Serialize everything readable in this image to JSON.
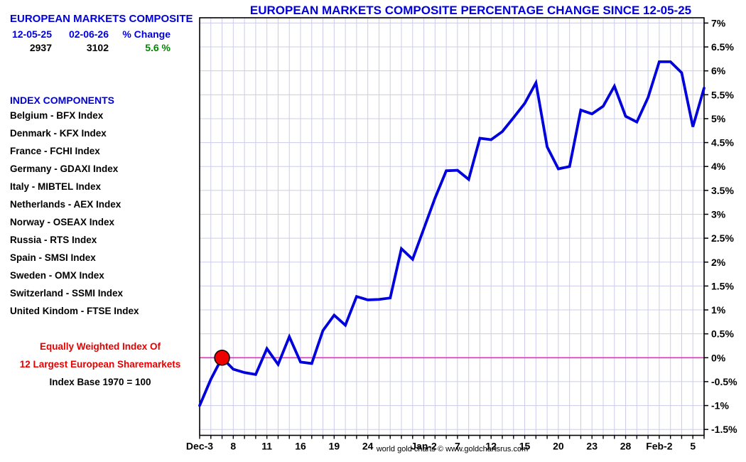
{
  "panel": {
    "title": "EUROPEAN MARKETS COMPOSITE",
    "col_start_date": "12-05-25",
    "col_end_date": "02-06-26",
    "col_change": "% Change",
    "start_value": "2937",
    "end_value": "3102",
    "change_value": "5.6 %",
    "change_color": "#008800"
  },
  "components": {
    "heading": "INDEX COMPONENTS",
    "items": [
      "Belgium - BFX Index",
      "Denmark - KFX Index",
      "France - FCHI Index",
      "Germany - GDAXI Index",
      "Italy - MIBTEL Index",
      "Netherlands - AEX Index",
      "Norway - OSEAX Index",
      "Russia - RTS Index",
      "Spain - SMSI Index",
      "Sweden - OMX Index",
      "Switzerland - SSMI Index",
      "United Kindom - FTSE Index"
    ]
  },
  "notes": [
    "Equally Weighted Index Of",
    "12 Largest European Sharemarkets",
    "Index Base 1970 = 100"
  ],
  "footer": "world gold charts © www.goldchartsrus.com",
  "chart_data": {
    "type": "line",
    "title": "EUROPEAN MARKETS COMPOSITE PERCENTAGE CHANGE SINCE 12-05-25",
    "ylabel": "",
    "xlabel": "",
    "ylim": [
      -1.5,
      7
    ],
    "y_step": 0.5,
    "grid": true,
    "y_tick_labels": [
      "7%",
      "6.5%",
      "6%",
      "5.5%",
      "5%",
      "4.5%",
      "4%",
      "3.5%",
      "3%",
      "2.5%",
      "2%",
      "1.5%",
      "1%",
      "0.5%",
      "0%",
      "-0.5%",
      "-1%",
      "-1.5%"
    ],
    "x_tick_labels": [
      {
        "index": 0,
        "label": "Dec-3"
      },
      {
        "index": 3,
        "label": "8"
      },
      {
        "index": 6,
        "label": "11"
      },
      {
        "index": 9,
        "label": "16"
      },
      {
        "index": 12,
        "label": "19"
      },
      {
        "index": 15,
        "label": "24"
      },
      {
        "index": 20,
        "label": "Jan-2"
      },
      {
        "index": 23,
        "label": "7"
      },
      {
        "index": 26,
        "label": "12"
      },
      {
        "index": 29,
        "label": "15"
      },
      {
        "index": 32,
        "label": "20"
      },
      {
        "index": 35,
        "label": "23"
      },
      {
        "index": 38,
        "label": "28"
      },
      {
        "index": 41,
        "label": "Feb-2"
      },
      {
        "index": 44,
        "label": "5"
      }
    ],
    "series": [
      {
        "name": "European Markets Composite % change",
        "values": [
          -1.0,
          -0.45,
          0.0,
          -0.24,
          -0.31,
          -0.35,
          0.19,
          -0.14,
          0.44,
          -0.09,
          -0.12,
          0.57,
          0.89,
          0.68,
          1.28,
          1.21,
          1.22,
          1.25,
          2.28,
          2.06,
          2.7,
          3.34,
          3.91,
          3.92,
          3.73,
          4.59,
          4.56,
          4.73,
          5.02,
          5.32,
          5.75,
          4.41,
          3.95,
          4.0,
          5.18,
          5.1,
          5.26,
          5.68,
          5.05,
          4.93,
          5.44,
          6.19,
          6.19,
          5.96,
          4.83,
          5.64
        ]
      }
    ],
    "marker": {
      "index": 2,
      "value": 0.0,
      "color": "#ee0000",
      "outline": "#000000"
    },
    "line_color": "#0000dd",
    "zero_line_color": "#ff22cc",
    "grid_color": "#ccccea",
    "frame_color": "#000000"
  }
}
